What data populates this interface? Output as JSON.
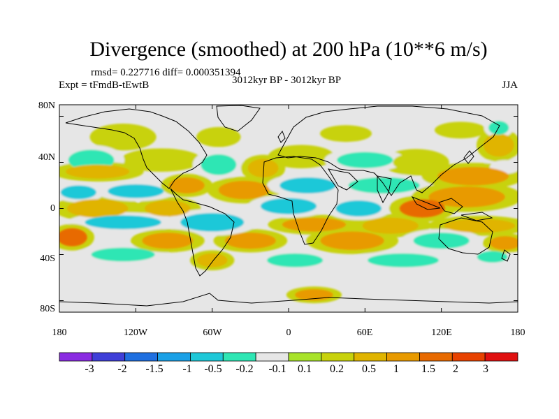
{
  "chart_data": {
    "type": "heatmap",
    "title": "Divergence (smoothed) at 200 hPa (10**6 m/s)",
    "stats_label": "rmsd= 0.227716 diff= 0.000351394",
    "left_label": "Expt = tFmdB-tEwtB",
    "center_label": "3012kyr BP - 3012kyr BP",
    "right_label": "JJA",
    "xlabel": "",
    "ylabel": "",
    "xlim": [
      -180,
      180
    ],
    "ylim": [
      -90,
      90
    ],
    "x_ticks": [
      {
        "value": -180,
        "label": "180"
      },
      {
        "value": -120,
        "label": "120W"
      },
      {
        "value": -60,
        "label": "60W"
      },
      {
        "value": 0,
        "label": "0"
      },
      {
        "value": 60,
        "label": "60E"
      },
      {
        "value": 120,
        "label": "120E"
      },
      {
        "value": 180,
        "label": "180"
      }
    ],
    "y_ticks": [
      {
        "value": 80,
        "label": "80N"
      },
      {
        "value": 40,
        "label": "40N"
      },
      {
        "value": 0,
        "label": "0"
      },
      {
        "value": -40,
        "label": "40S"
      },
      {
        "value": -80,
        "label": "80S"
      }
    ],
    "colorbar": {
      "colors": [
        "#8a2be2",
        "#3f3fd8",
        "#1f6fe0",
        "#1aa0e6",
        "#1ec8d8",
        "#2ee6b4",
        "#e6e6e6",
        "#a8e32a",
        "#c8d20c",
        "#e0b400",
        "#e89a00",
        "#e86a00",
        "#e84200",
        "#e01010"
      ],
      "labels": [
        "-3",
        "-2",
        "-1.5",
        "-1",
        "-0.5",
        "-0.2",
        "-0.1",
        "0.1",
        "0.2",
        "0.5",
        "1",
        "1.5",
        "2",
        "3"
      ]
    },
    "blobs": [
      {
        "lon": -130,
        "lat": 62,
        "rlon": 18,
        "rlat": 8,
        "value": 0.15
      },
      {
        "lon": -55,
        "lat": 62,
        "rlon": 12,
        "rlat": 6,
        "value": 0.15
      },
      {
        "lon": 45,
        "lat": 65,
        "rlon": 14,
        "rlat": 5,
        "value": 0.15
      },
      {
        "lon": 135,
        "lat": 68,
        "rlon": 14,
        "rlat": 5,
        "value": 0.15
      },
      {
        "lon": 165,
        "lat": 55,
        "rlon": 12,
        "rlat": 10,
        "value": 0.3
      },
      {
        "lon": 165,
        "lat": 70,
        "rlon": 8,
        "rlat": 6,
        "value": -0.3
      },
      {
        "lon": -155,
        "lat": 42,
        "rlon": 18,
        "rlat": 9,
        "value": -0.3
      },
      {
        "lon": -150,
        "lat": 32,
        "rlon": 25,
        "rlat": 6,
        "value": 0.3
      },
      {
        "lon": -100,
        "lat": 42,
        "rlon": 22,
        "rlat": 7,
        "value": 0.15
      },
      {
        "lon": -55,
        "lat": 38,
        "rlon": 14,
        "rlat": 9,
        "value": -0.3
      },
      {
        "lon": -20,
        "lat": 35,
        "rlon": 12,
        "rlat": 8,
        "value": 0.3
      },
      {
        "lon": 10,
        "lat": 45,
        "rlon": 18,
        "rlat": 7,
        "value": 0.15
      },
      {
        "lon": 60,
        "lat": 42,
        "rlon": 22,
        "rlat": 7,
        "value": -0.3
      },
      {
        "lon": 100,
        "lat": 40,
        "rlon": 18,
        "rlat": 8,
        "value": 0.15
      },
      {
        "lon": 145,
        "lat": 28,
        "rlon": 28,
        "rlat": 8,
        "value": 0.5
      },
      {
        "lon": 170,
        "lat": 36,
        "rlon": 12,
        "rlat": 6,
        "value": -0.15
      },
      {
        "lon": -165,
        "lat": 14,
        "rlon": 14,
        "rlat": 6,
        "value": -0.6
      },
      {
        "lon": -120,
        "lat": 15,
        "rlon": 22,
        "rlat": 6,
        "value": -0.6
      },
      {
        "lon": -80,
        "lat": 20,
        "rlon": 14,
        "rlat": 7,
        "value": 0.8
      },
      {
        "lon": -35,
        "lat": 16,
        "rlon": 20,
        "rlat": 8,
        "value": 0.8
      },
      {
        "lon": 15,
        "lat": 20,
        "rlon": 22,
        "rlat": 7,
        "value": -0.8
      },
      {
        "lon": 75,
        "lat": 20,
        "rlon": 28,
        "rlat": 7,
        "value": -0.4
      },
      {
        "lon": 140,
        "lat": 10,
        "rlon": 30,
        "rlat": 9,
        "value": 0.9
      },
      {
        "lon": -150,
        "lat": 0,
        "rlon": 24,
        "rlat": 8,
        "value": 0.3
      },
      {
        "lon": -95,
        "lat": 0,
        "rlon": 18,
        "rlat": 7,
        "value": 0.4
      },
      {
        "lon": 0,
        "lat": 2,
        "rlon": 22,
        "rlat": 7,
        "value": -0.9
      },
      {
        "lon": 55,
        "lat": 0,
        "rlon": 18,
        "rlat": 7,
        "value": -0.6
      },
      {
        "lon": 105,
        "lat": 0,
        "rlon": 18,
        "rlat": 8,
        "value": 1.2
      },
      {
        "lon": -130,
        "lat": -12,
        "rlon": 30,
        "rlat": 6,
        "value": -0.6
      },
      {
        "lon": -60,
        "lat": -12,
        "rlon": 25,
        "rlat": 8,
        "value": -0.6
      },
      {
        "lon": 20,
        "lat": -14,
        "rlon": 25,
        "rlat": 6,
        "value": 0.5
      },
      {
        "lon": 80,
        "lat": -15,
        "rlon": 22,
        "rlat": 7,
        "value": 0.3
      },
      {
        "lon": 150,
        "lat": -15,
        "rlon": 28,
        "rlat": 6,
        "value": 0.4
      },
      {
        "lon": -170,
        "lat": -25,
        "rlon": 12,
        "rlat": 8,
        "value": 1.0
      },
      {
        "lon": -95,
        "lat": -28,
        "rlon": 20,
        "rlat": 7,
        "value": 0.8
      },
      {
        "lon": -30,
        "lat": -28,
        "rlon": 20,
        "rlat": 7,
        "value": 0.5
      },
      {
        "lon": 50,
        "lat": -28,
        "rlon": 25,
        "rlat": 8,
        "value": 0.7
      },
      {
        "lon": 120,
        "lat": -28,
        "rlon": 22,
        "rlat": 7,
        "value": -0.4
      },
      {
        "lon": 170,
        "lat": -30,
        "rlon": 12,
        "rlat": 6,
        "value": 0.5
      },
      {
        "lon": -130,
        "lat": -40,
        "rlon": 25,
        "rlat": 6,
        "value": -0.4
      },
      {
        "lon": -60,
        "lat": -45,
        "rlon": 12,
        "rlat": 6,
        "value": 0.3
      },
      {
        "lon": 5,
        "lat": -45,
        "rlon": 22,
        "rlat": 6,
        "value": -0.3
      },
      {
        "lon": 90,
        "lat": -45,
        "rlon": 28,
        "rlat": 6,
        "value": -0.3
      },
      {
        "lon": 160,
        "lat": -42,
        "rlon": 12,
        "rlat": 5,
        "value": -0.3
      },
      {
        "lon": 20,
        "lat": -75,
        "rlon": 15,
        "rlat": 5,
        "value": 0.5
      }
    ]
  }
}
